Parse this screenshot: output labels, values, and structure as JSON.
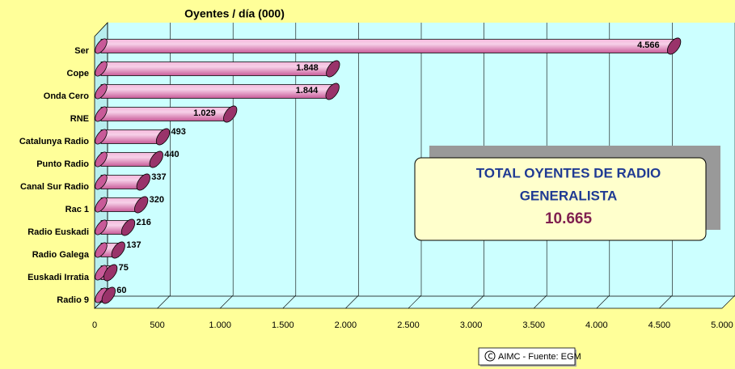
{
  "chart_data": {
    "type": "bar3d_horizontal",
    "title": "Oyentes / día  (000)",
    "categories": [
      "Ser",
      "Cope",
      "Onda Cero",
      "RNE",
      "Catalunya Radio",
      "Punto Radio",
      "Canal Sur Radio",
      "Rac 1",
      "Radio Euskadi",
      "Radio Galega",
      "Euskadi Irratia",
      "Radio 9"
    ],
    "values": [
      4566,
      1848,
      1844,
      1029,
      493,
      440,
      337,
      320,
      216,
      137,
      75,
      60
    ],
    "value_labels": [
      "4.566",
      "1.848",
      "1.844",
      "1.029",
      "493",
      "440",
      "337",
      "320",
      "216",
      "137",
      "75",
      "60"
    ],
    "color": "#e070b0",
    "xlim": [
      0,
      5000
    ],
    "xticks": [
      0,
      500,
      {
        "value": 1000,
        "label": "1.000"
      },
      {
        "value": 1500,
        "label": "1.500"
      },
      {
        "value": 2000,
        "label": "2.000"
      },
      {
        "value": 2500,
        "label": "2.500"
      },
      {
        "value": 3000,
        "label": "3.000"
      },
      {
        "value": 3500,
        "label": "3.500"
      },
      {
        "value": 4000,
        "label": "4.000"
      },
      {
        "value": 4500,
        "label": "4.500"
      },
      {
        "value": 5000,
        "label": "5.000"
      }
    ],
    "grid": true,
    "annotations": [
      "TOTAL OYENTES DE RADIO",
      "GENERALISTA",
      "10.665"
    ],
    "source": "AIMC - Fuente: EGM"
  }
}
